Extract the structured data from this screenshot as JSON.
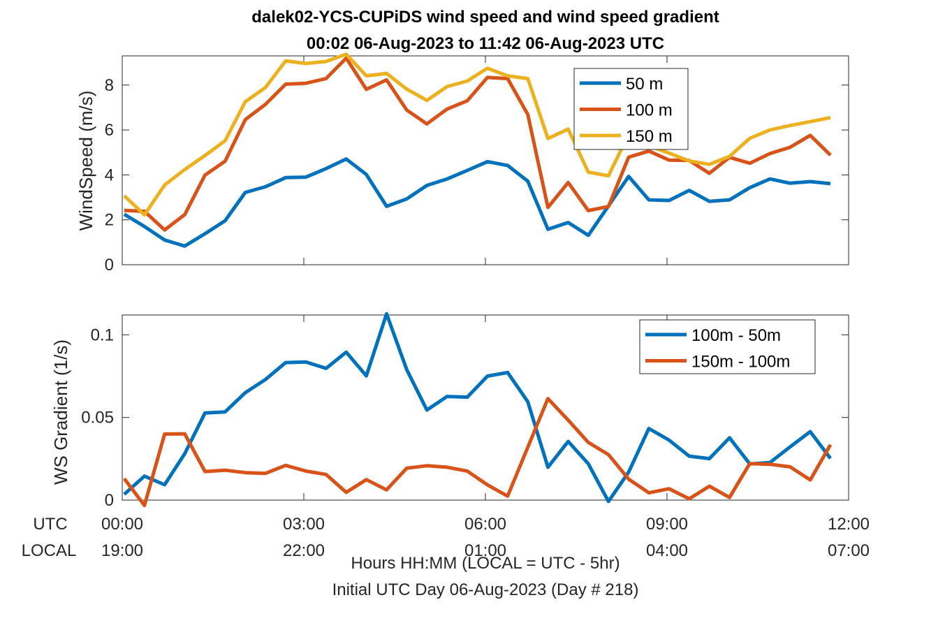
{
  "title_line1": "dalek02-YCS-CUPiDS  wind speed and wind speed gradient",
  "title_line2": "00:02 06-Aug-2023 to 11:42 06-Aug-2023  UTC",
  "xlabel_line1": "Hours HH:MM  (LOCAL = UTC - 5hr)",
  "xlabel_line2": "Initial UTC Day 06-Aug-2023 (Day # 218)",
  "row_label_utc": "UTC",
  "row_label_local": "LOCAL",
  "colors": {
    "blue": "#0072BD",
    "orange": "#D95319",
    "yellow": "#EDB120"
  },
  "chart_data": [
    {
      "type": "line",
      "ylabel": "WindSpeed (m/s)",
      "xlim": [
        0,
        12
      ],
      "ylim": [
        0,
        9.3
      ],
      "yticks": [
        0,
        2,
        4,
        6,
        8
      ],
      "ytick_labels": [
        "0",
        "2",
        "4",
        "6",
        "8"
      ],
      "legend_position": "top-right",
      "x": [
        0.033,
        0.367,
        0.7,
        1.033,
        1.367,
        1.7,
        2.033,
        2.367,
        2.7,
        3.033,
        3.367,
        3.7,
        4.033,
        4.367,
        4.7,
        5.033,
        5.367,
        5.7,
        6.033,
        6.367,
        6.7,
        7.033,
        7.367,
        7.7,
        8.033,
        8.367,
        8.7,
        9.033,
        9.367,
        9.7,
        10.033,
        10.367,
        10.7,
        11.033,
        11.367,
        11.7
      ],
      "series": [
        {
          "name": "50 m",
          "color": "#0072BD",
          "values": [
            2.25,
            1.7,
            1.1,
            0.83,
            1.38,
            1.96,
            3.22,
            3.47,
            3.88,
            3.9,
            4.28,
            4.71,
            4.02,
            2.6,
            2.93,
            3.53,
            3.82,
            4.2,
            4.59,
            4.42,
            3.72,
            1.58,
            1.88,
            1.31,
            2.62,
            3.93,
            2.89,
            2.86,
            3.31,
            2.82,
            2.89,
            3.43,
            3.82,
            3.63,
            3.7,
            3.61
          ]
        },
        {
          "name": "100 m",
          "color": "#D95319",
          "values": [
            2.42,
            2.38,
            1.55,
            2.23,
            3.99,
            4.61,
            6.46,
            7.14,
            8.04,
            8.08,
            8.29,
            9.2,
            7.81,
            8.23,
            6.89,
            6.27,
            6.93,
            7.3,
            8.34,
            8.29,
            6.69,
            2.55,
            3.66,
            2.41,
            2.59,
            4.79,
            5.06,
            4.66,
            4.64,
            4.07,
            4.78,
            4.52,
            4.95,
            5.23,
            5.76,
            4.88
          ]
        },
        {
          "name": "150 m",
          "color": "#EDB120",
          "values": [
            3.07,
            2.22,
            3.55,
            4.24,
            4.86,
            5.52,
            7.26,
            7.89,
            9.08,
            8.96,
            9.05,
            9.37,
            8.41,
            8.52,
            7.82,
            7.32,
            7.93,
            8.18,
            8.75,
            8.41,
            8.29,
            5.62,
            6.04,
            4.12,
            3.96,
            5.81,
            5.29,
            4.97,
            4.62,
            4.47,
            4.82,
            5.63,
            6.0,
            6.2,
            6.37,
            6.55
          ]
        }
      ]
    },
    {
      "type": "line",
      "ylabel": "WS Gradient (1/s)",
      "xlim": [
        0,
        12
      ],
      "ylim": [
        0,
        0.112
      ],
      "yticks": [
        0,
        0.05,
        0.1
      ],
      "ytick_labels": [
        "0",
        "0.05",
        "0.1"
      ],
      "legend_position": "top-right",
      "x": [
        0.033,
        0.367,
        0.7,
        1.033,
        1.367,
        1.7,
        2.033,
        2.367,
        2.7,
        3.033,
        3.367,
        3.7,
        4.033,
        4.367,
        4.7,
        5.033,
        5.367,
        5.7,
        6.033,
        6.367,
        6.7,
        7.033,
        7.367,
        7.7,
        8.033,
        8.367,
        8.7,
        9.033,
        9.367,
        9.7,
        10.033,
        10.367,
        10.7,
        11.033,
        11.367,
        11.7
      ],
      "xticks": [
        0,
        3,
        6,
        9,
        12
      ],
      "xtick_labels_utc": [
        "00:00",
        "03:00",
        "06:00",
        "09:00",
        "12:00"
      ],
      "xtick_labels_local": [
        "19:00",
        "22:00",
        "01:00",
        "04:00",
        "07:00"
      ],
      "series": [
        {
          "name": "100m - 50m",
          "color": "#0072BD",
          "values": [
            0.0035,
            0.0145,
            0.0093,
            0.0281,
            0.0527,
            0.0534,
            0.065,
            0.073,
            0.0832,
            0.0836,
            0.0797,
            0.0895,
            0.0752,
            0.1127,
            0.079,
            0.0545,
            0.0627,
            0.0623,
            0.075,
            0.0772,
            0.0595,
            0.0199,
            0.0355,
            0.022,
            -0.0008,
            0.017,
            0.0433,
            0.0363,
            0.0266,
            0.0251,
            0.0377,
            0.0219,
            0.0227,
            0.0322,
            0.0414,
            0.0252
          ]
        },
        {
          "name": "150m - 100m",
          "color": "#D95319",
          "values": [
            0.013,
            -0.0032,
            0.04,
            0.0401,
            0.0173,
            0.0181,
            0.0166,
            0.0162,
            0.021,
            0.0176,
            0.0155,
            0.0047,
            0.0124,
            0.0062,
            0.0193,
            0.0208,
            0.0199,
            0.0176,
            0.0092,
            0.0024,
            0.032,
            0.0614,
            0.0484,
            0.0349,
            0.0275,
            0.0127,
            0.0044,
            0.0069,
            0.0008,
            0.0084,
            0.0016,
            0.0221,
            0.0217,
            0.0201,
            0.0122,
            0.0335
          ]
        }
      ]
    }
  ]
}
